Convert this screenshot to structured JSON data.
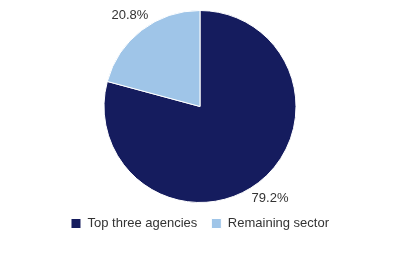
{
  "chart_data": {
    "type": "pie",
    "categories": [
      "Top three agencies",
      "Remaining sector"
    ],
    "values": [
      79.2,
      20.8
    ],
    "value_labels": [
      "79.2%",
      "20.8%"
    ],
    "colors": [
      "#151c5e",
      "#9fc5e8"
    ],
    "data_labels": true,
    "legend": "bottom"
  }
}
